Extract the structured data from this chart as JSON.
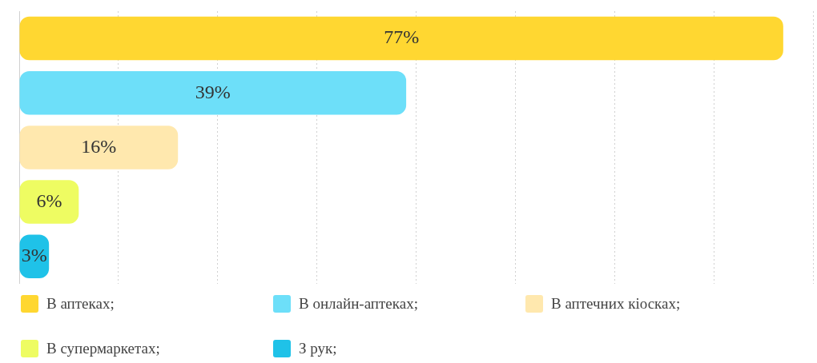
{
  "chart_data": {
    "type": "bar",
    "orientation": "horizontal",
    "stacked": true,
    "categories": [
      null,
      null,
      null,
      null,
      null
    ],
    "series": [
      {
        "name": "В аптеках;",
        "color": "#ffd731",
        "values": [
          77,
          null,
          null,
          null,
          null
        ],
        "value_labels": [
          "77%",
          null,
          null,
          null,
          null
        ]
      },
      {
        "name": "В онлайн-аптеках;",
        "color": "#6ddff9",
        "values": [
          null,
          39,
          null,
          null,
          null
        ],
        "value_labels": [
          null,
          "39%",
          null,
          null,
          null
        ]
      },
      {
        "name": "В аптечних кіосках;",
        "color": "#ffe8ae",
        "values": [
          null,
          null,
          16,
          null,
          null
        ],
        "value_labels": [
          null,
          null,
          "16%",
          null,
          null
        ]
      },
      {
        "name": "В супермаркетах;",
        "color": "#eefc62",
        "values": [
          null,
          null,
          null,
          6,
          null
        ],
        "value_labels": [
          null,
          null,
          null,
          "6%",
          null
        ]
      },
      {
        "name": "З рук;",
        "color": "#1fc2e8",
        "values": [
          null,
          null,
          null,
          null,
          3
        ],
        "value_labels": [
          null,
          null,
          null,
          null,
          "3%"
        ]
      }
    ],
    "grid": "x",
    "legend": "bottom"
  }
}
